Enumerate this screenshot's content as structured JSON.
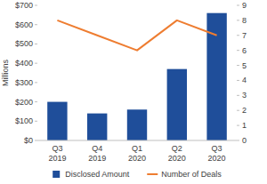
{
  "chart_data": {
    "type": "bar",
    "ylabel": "Millions",
    "categories": [
      "Q3 2019",
      "Q4 2019",
      "Q1 2020",
      "Q2 2020",
      "Q3 2020"
    ],
    "series": [
      {
        "name": "Disclosed Amount",
        "type": "bar",
        "color": "#1f4e9a",
        "values": [
          200,
          140,
          160,
          370,
          660
        ]
      },
      {
        "name": "Number of Deals",
        "type": "line",
        "color": "#ee7d31",
        "axis": "y2",
        "values": [
          8,
          7,
          6,
          8,
          7
        ]
      }
    ],
    "ylim": [
      0,
      700
    ],
    "yticks": [
      {
        "value": 0,
        "label": "$0"
      },
      {
        "value": 100,
        "label": "$100"
      },
      {
        "value": 200,
        "label": "$200"
      },
      {
        "value": 300,
        "label": "$300"
      },
      {
        "value": 400,
        "label": "$400"
      },
      {
        "value": 500,
        "label": "$500"
      },
      {
        "value": 600,
        "label": "$600"
      },
      {
        "value": 700,
        "label": "$700"
      }
    ],
    "y2lim": [
      0,
      9
    ],
    "y2ticks": [
      0,
      1,
      2,
      3,
      4,
      5,
      6,
      7,
      8,
      9
    ],
    "grid": false,
    "legend": "bottom"
  }
}
